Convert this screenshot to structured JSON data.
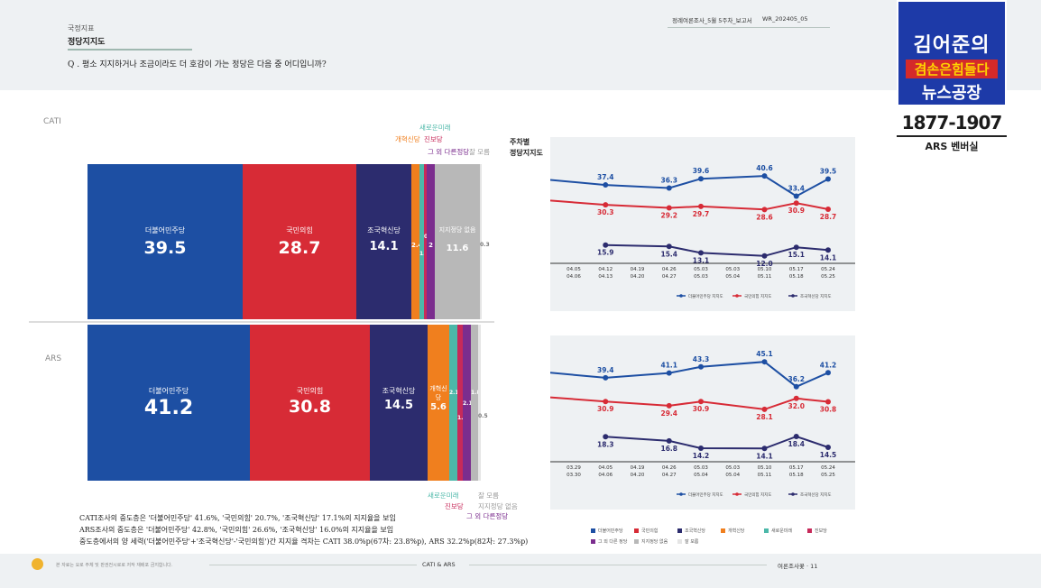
{
  "header": {
    "category": "국정지표",
    "subtitle": "정당지지도",
    "question": "Q . 평소 지지하거나 조금이라도 더 호감이 가는 정당은 다음 중 어디입니까?",
    "report": "정례여론조사_5월 5주차_보고서",
    "report_code": "WR_202405_05"
  },
  "overlay": {
    "logo_line1": "김어준의",
    "logo_line2": "겸손은힘들다",
    "logo_line3": "뉴스공장",
    "year_range": "1877-1907",
    "ars_label": "ARS 벤버실"
  },
  "sections": {
    "cati": "CATI",
    "ars": "ARS"
  },
  "trend_title_1": "주차별",
  "trend_title_2": "정당지지도",
  "colors": {
    "dem": "#1d4fa3",
    "ppp": "#d72b36",
    "rebuild": "#2c2c6e",
    "reform": "#f07f1e",
    "newfuture": "#4cb8a9",
    "progressive": "#c72a5a",
    "other": "#7b2d8e",
    "none": "#b8b8b8",
    "dk": "#e5e5e5"
  },
  "chart_data": [
    {
      "type": "bar",
      "stacked": true,
      "title": "CATI",
      "categories": [
        "더불어민주당",
        "국민의힘",
        "조국혁신당",
        "개혁신당",
        "새로운미래",
        "진보당",
        "그 외 다른정당",
        "지지정당 없음",
        "잘 모름"
      ],
      "values": [
        39.5,
        28.7,
        14.1,
        2.4,
        1.1,
        0.4,
        2.0,
        11.6,
        0.3
      ]
    },
    {
      "type": "bar",
      "stacked": true,
      "title": "ARS",
      "categories": [
        "더불어민주당",
        "국민의힘",
        "조국혁신당",
        "개혁신당",
        "새로운미래",
        "진보당",
        "그 외 다른정당",
        "지지정당 없음",
        "잘 모름"
      ],
      "values": [
        41.2,
        30.8,
        14.5,
        5.6,
        2.1,
        1.4,
        2.1,
        1.8,
        0.5
      ]
    },
    {
      "type": "line",
      "title": "CATI 주차별 정당지지도",
      "x": [
        "04.05\n04.06",
        "04.12\n04.13",
        "04.19\n04.20",
        "04.26\n04.27",
        "05.03\n05.03",
        "05.03\n05.04",
        "05.10\n05.11",
        "05.17\n05.18",
        "05.24\n05.25"
      ],
      "series": [
        {
          "name": "더불어민주당 지지도",
          "values": [
            null,
            37.4,
            null,
            36.3,
            39.6,
            null,
            40.6,
            33.4,
            39.5
          ]
        },
        {
          "name": "국민의힘 지지도",
          "values": [
            null,
            30.3,
            null,
            29.2,
            29.7,
            null,
            28.6,
            30.9,
            28.7
          ]
        },
        {
          "name": "조국혁신당 지지도",
          "values": [
            null,
            15.9,
            null,
            15.4,
            13.1,
            null,
            12.0,
            15.1,
            14.1
          ]
        }
      ]
    },
    {
      "type": "line",
      "title": "ARS 주차별 정당지지도",
      "x": [
        "03.29\n03.30",
        "04.05\n04.06",
        "04.19\n04.20",
        "04.26\n04.27",
        "05.03\n05.04",
        "05.03\n05.04",
        "05.10\n05.11",
        "05.17\n05.18",
        "05.24\n05.25"
      ],
      "series": [
        {
          "name": "더불어민주당 지지도",
          "values": [
            null,
            39.4,
            null,
            41.1,
            43.3,
            null,
            45.1,
            36.2,
            41.2
          ]
        },
        {
          "name": "국민의힘 지지도",
          "values": [
            null,
            30.9,
            null,
            29.4,
            30.9,
            null,
            28.1,
            32.0,
            30.8
          ]
        },
        {
          "name": "조국혁신당 지지도",
          "values": [
            null,
            18.3,
            null,
            16.8,
            14.2,
            null,
            14.1,
            18.4,
            14.5
          ]
        }
      ]
    }
  ],
  "cati_labels": {
    "reform": "개혁신당",
    "newfuture": "새로운미래",
    "progressive": "진보당",
    "other": "그 외 다른정당",
    "dk": "잘 모름"
  },
  "ars_labels": {
    "newfuture": "새로운미래",
    "progressive": "진보당",
    "other": "그 외 다른정당",
    "none": "지지정당 없음",
    "dk": "잘 모름"
  },
  "notes": {
    "n1": "CATI조사의 중도층은 '더불어민주당' 41.6%, '국민의힘' 20.7%, '조국혁신당' 17.1%의 지지율을 보임",
    "n2": "ARS조사의 중도층은 '더불어민주당' 42.8%, '국민의힘' 26.6%, '조국혁신당' 16.0%의 지지율을 보임",
    "n3": "중도층에서의 양 세력('더불어민주당'+'조국혁신당'-'국민의힘')간 지지율 격차는 CATI 38.0%p(67차: 23.8%p), ARS 32.2%p(82차: 27.3%p)"
  },
  "footer": {
    "left": "본 자료는 요로 주체 및 판권전시로로 저작 재배포 금지합니다.",
    "center": "CATI & ARS",
    "right": "여론조사꽃 · 11"
  },
  "legend": [
    "더불어민주당",
    "국민의힘",
    "조국혁신당",
    "개혁신당",
    "새로운미래",
    "진보당",
    "그 외 다른 정당",
    "지지정당 없음",
    "잘 모름"
  ]
}
